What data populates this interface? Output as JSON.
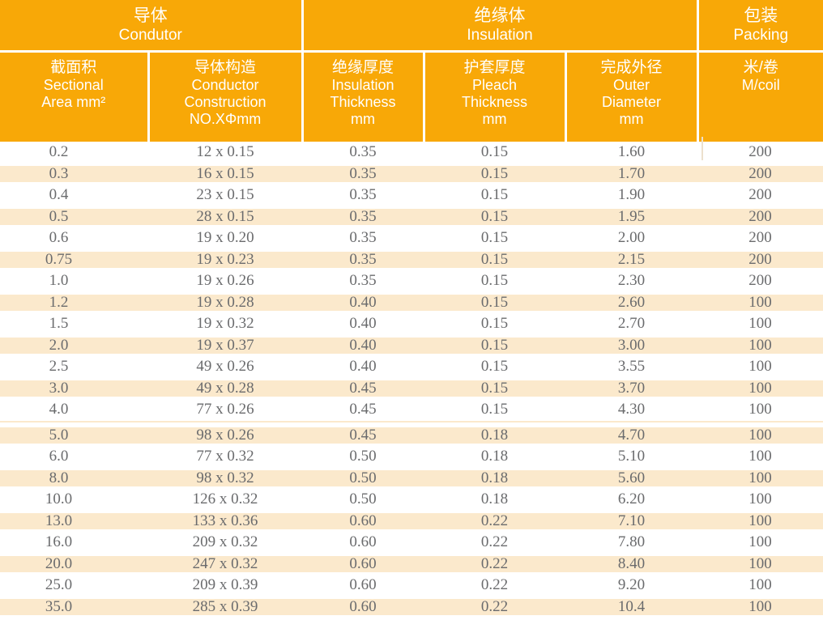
{
  "colors": {
    "header_orange": "#F8A807",
    "stripe_cream": "#FBE9CC",
    "text_gray": "#6A6B6D",
    "header_text": "#FFFFFF"
  },
  "table": {
    "groups": [
      {
        "zh": "导体",
        "en": "Condutor"
      },
      {
        "zh": "绝缘体",
        "en": "Insulation"
      },
      {
        "zh": "包装",
        "en": "Packing"
      }
    ],
    "columns": [
      {
        "key": "sectional-area",
        "lines": [
          "截面积",
          "Sectional",
          "Area mm²"
        ]
      },
      {
        "key": "conductor-construction",
        "lines": [
          "导体构造",
          "Conductor",
          "Construction",
          "NO.XΦmm"
        ]
      },
      {
        "key": "insulation-thickness",
        "lines": [
          "绝缘厚度",
          "Insulation",
          "Thickness",
          "mm"
        ]
      },
      {
        "key": "pleach-thickness",
        "lines": [
          "护套厚度",
          "Pleach",
          "Thickness",
          "mm"
        ]
      },
      {
        "key": "outer-diameter",
        "lines": [
          "完成外径",
          "Outer",
          "Diameter",
          "mm"
        ]
      },
      {
        "key": "m-per-coil",
        "lines": [
          "米/卷",
          "M/coil"
        ]
      }
    ],
    "divider_after_row_index": 12,
    "rows": [
      [
        "0.2",
        "12 x 0.15",
        "0.35",
        "0.15",
        "1.60",
        "200"
      ],
      [
        "0.3",
        "16 x 0.15",
        "0.35",
        "0.15",
        "1.70",
        "200"
      ],
      [
        "0.4",
        "23 x 0.15",
        "0.35",
        "0.15",
        "1.90",
        "200"
      ],
      [
        "0.5",
        "28 x 0.15",
        "0.35",
        "0.15",
        "1.95",
        "200"
      ],
      [
        "0.6",
        "19 x 0.20",
        "0.35",
        "0.15",
        "2.00",
        "200"
      ],
      [
        "0.75",
        "19 x 0.23",
        "0.35",
        "0.15",
        "2.15",
        "200"
      ],
      [
        "1.0",
        "19 x 0.26",
        "0.35",
        "0.15",
        "2.30",
        "200"
      ],
      [
        "1.2",
        "19 x 0.28",
        "0.40",
        "0.15",
        "2.60",
        "100"
      ],
      [
        "1.5",
        "19 x 0.32",
        "0.40",
        "0.15",
        "2.70",
        "100"
      ],
      [
        "2.0",
        "19 x 0.37",
        "0.40",
        "0.15",
        "3.00",
        "100"
      ],
      [
        "2.5",
        "49 x 0.26",
        "0.40",
        "0.15",
        "3.55",
        "100"
      ],
      [
        "3.0",
        "49 x 0.28",
        "0.45",
        "0.15",
        "3.70",
        "100"
      ],
      [
        "4.0",
        "77 x 0.26",
        "0.45",
        "0.15",
        "4.30",
        "100"
      ],
      [
        "5.0",
        "98 x 0.26",
        "0.45",
        "0.18",
        "4.70",
        "100"
      ],
      [
        "6.0",
        "77 x 0.32",
        "0.50",
        "0.18",
        "5.10",
        "100"
      ],
      [
        "8.0",
        "98 x 0.32",
        "0.50",
        "0.18",
        "5.60",
        "100"
      ],
      [
        "10.0",
        "126 x 0.32",
        "0.50",
        "0.18",
        "6.20",
        "100"
      ],
      [
        "13.0",
        "133 x 0.36",
        "0.60",
        "0.22",
        "7.10",
        "100"
      ],
      [
        "16.0",
        "209 x 0.32",
        "0.60",
        "0.22",
        "7.80",
        "100"
      ],
      [
        "20.0",
        "247 x 0.32",
        "0.60",
        "0.22",
        "8.40",
        "100"
      ],
      [
        "25.0",
        "209 x 0.39",
        "0.60",
        "0.22",
        "9.20",
        "100"
      ],
      [
        "35.0",
        "285 x 0.39",
        "0.60",
        "0.22",
        "10.4",
        "100"
      ]
    ]
  }
}
